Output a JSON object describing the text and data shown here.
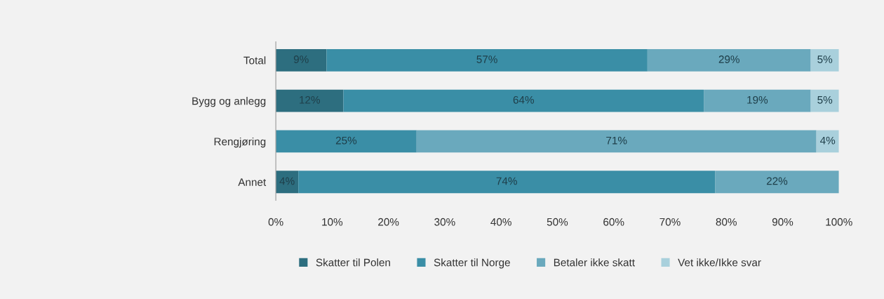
{
  "chart_data": {
    "type": "bar",
    "orientation": "horizontal",
    "stacked": true,
    "categories": [
      "Total",
      "Bygg og anlegg",
      "Rengjøring",
      "Annet"
    ],
    "series": [
      {
        "name": "Skatter til Polen",
        "color": "#2d6e7f",
        "values": [
          9,
          12,
          0,
          4
        ],
        "value_labels": [
          "9%",
          "12%",
          null,
          "4%"
        ]
      },
      {
        "name": "Skatter til Norge",
        "color": "#3a8ea6",
        "values": [
          57,
          64,
          25,
          74
        ],
        "value_labels": [
          "57%",
          "64%",
          "25%",
          "74%"
        ]
      },
      {
        "name": "Betaler ikke skatt",
        "color": "#6aa9bd",
        "values": [
          29,
          19,
          71,
          22
        ],
        "value_labels": [
          "29%",
          "19%",
          "71%",
          "22%"
        ]
      },
      {
        "name": "Vet ikke/Ikke svar",
        "color": "#a9d0dc",
        "values": [
          5,
          5,
          4,
          0
        ],
        "value_labels": [
          "5%",
          "5%",
          "4%",
          null
        ]
      }
    ],
    "xlim": [
      0,
      100
    ],
    "xticks": [
      {
        "value": 0,
        "label": "0%"
      },
      {
        "value": 10,
        "label": "10%"
      },
      {
        "value": 20,
        "label": "20%"
      },
      {
        "value": 30,
        "label": "30%"
      },
      {
        "value": 40,
        "label": "40%"
      },
      {
        "value": 50,
        "label": "50%"
      },
      {
        "value": 60,
        "label": "60%"
      },
      {
        "value": 70,
        "label": "70%"
      },
      {
        "value": 80,
        "label": "80%"
      },
      {
        "value": 90,
        "label": "90%"
      },
      {
        "value": 100,
        "label": "100%"
      }
    ],
    "grid": false,
    "legend": "bottom"
  }
}
